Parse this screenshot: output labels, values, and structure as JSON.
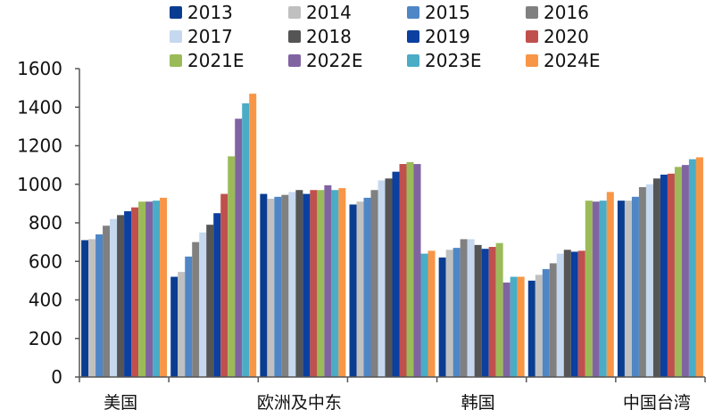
{
  "chart_data": {
    "type": "bar",
    "title": "",
    "xlabel": "",
    "ylabel": "",
    "ylim": [
      0,
      1600
    ],
    "yticks": [
      "0",
      "200",
      "400",
      "600",
      "800",
      "1000",
      "1200",
      "1400",
      "1600"
    ],
    "grid": false,
    "legend_position": "top",
    "categories": [
      "美国",
      "",
      "欧洲及中东",
      "",
      "韩国",
      "",
      "中国台湾"
    ],
    "series": [
      {
        "name": "2013",
        "color": "#0a3d91",
        "values": [
          710,
          520,
          950,
          895,
          620,
          500,
          915
        ]
      },
      {
        "name": "2014",
        "color": "#c0c0c0",
        "values": [
          715,
          545,
          925,
          910,
          660,
          530,
          915
        ]
      },
      {
        "name": "2015",
        "color": "#4f86c6",
        "values": [
          740,
          625,
          935,
          930,
          670,
          560,
          935
        ]
      },
      {
        "name": "2016",
        "color": "#808080",
        "values": [
          785,
          700,
          945,
          970,
          715,
          590,
          985
        ]
      },
      {
        "name": "2017",
        "color": "#c5d8ef",
        "values": [
          820,
          750,
          960,
          1020,
          715,
          640,
          1000
        ]
      },
      {
        "name": "2018",
        "color": "#555555",
        "values": [
          840,
          790,
          970,
          1030,
          685,
          660,
          1030
        ]
      },
      {
        "name": "2019",
        "color": "#0b3fa0",
        "values": [
          860,
          850,
          950,
          1065,
          665,
          650,
          1050
        ]
      },
      {
        "name": "2020",
        "color": "#c0504d",
        "values": [
          880,
          950,
          970,
          1105,
          675,
          655,
          1055
        ]
      },
      {
        "name": "2021E",
        "color": "#9bbb59",
        "values": [
          910,
          1145,
          970,
          1115,
          695,
          915,
          1090
        ]
      },
      {
        "name": "2022E",
        "color": "#8064a2",
        "values": [
          910,
          1340,
          995,
          1105,
          490,
          910,
          1100
        ]
      },
      {
        "name": "2023E",
        "color": "#4bacc6",
        "values": [
          915,
          1420,
          970,
          640,
          520,
          915,
          1130
        ]
      },
      {
        "name": "2024E",
        "color": "#f79646",
        "values": [
          930,
          1470,
          980,
          655,
          520,
          960,
          1140
        ]
      }
    ]
  }
}
